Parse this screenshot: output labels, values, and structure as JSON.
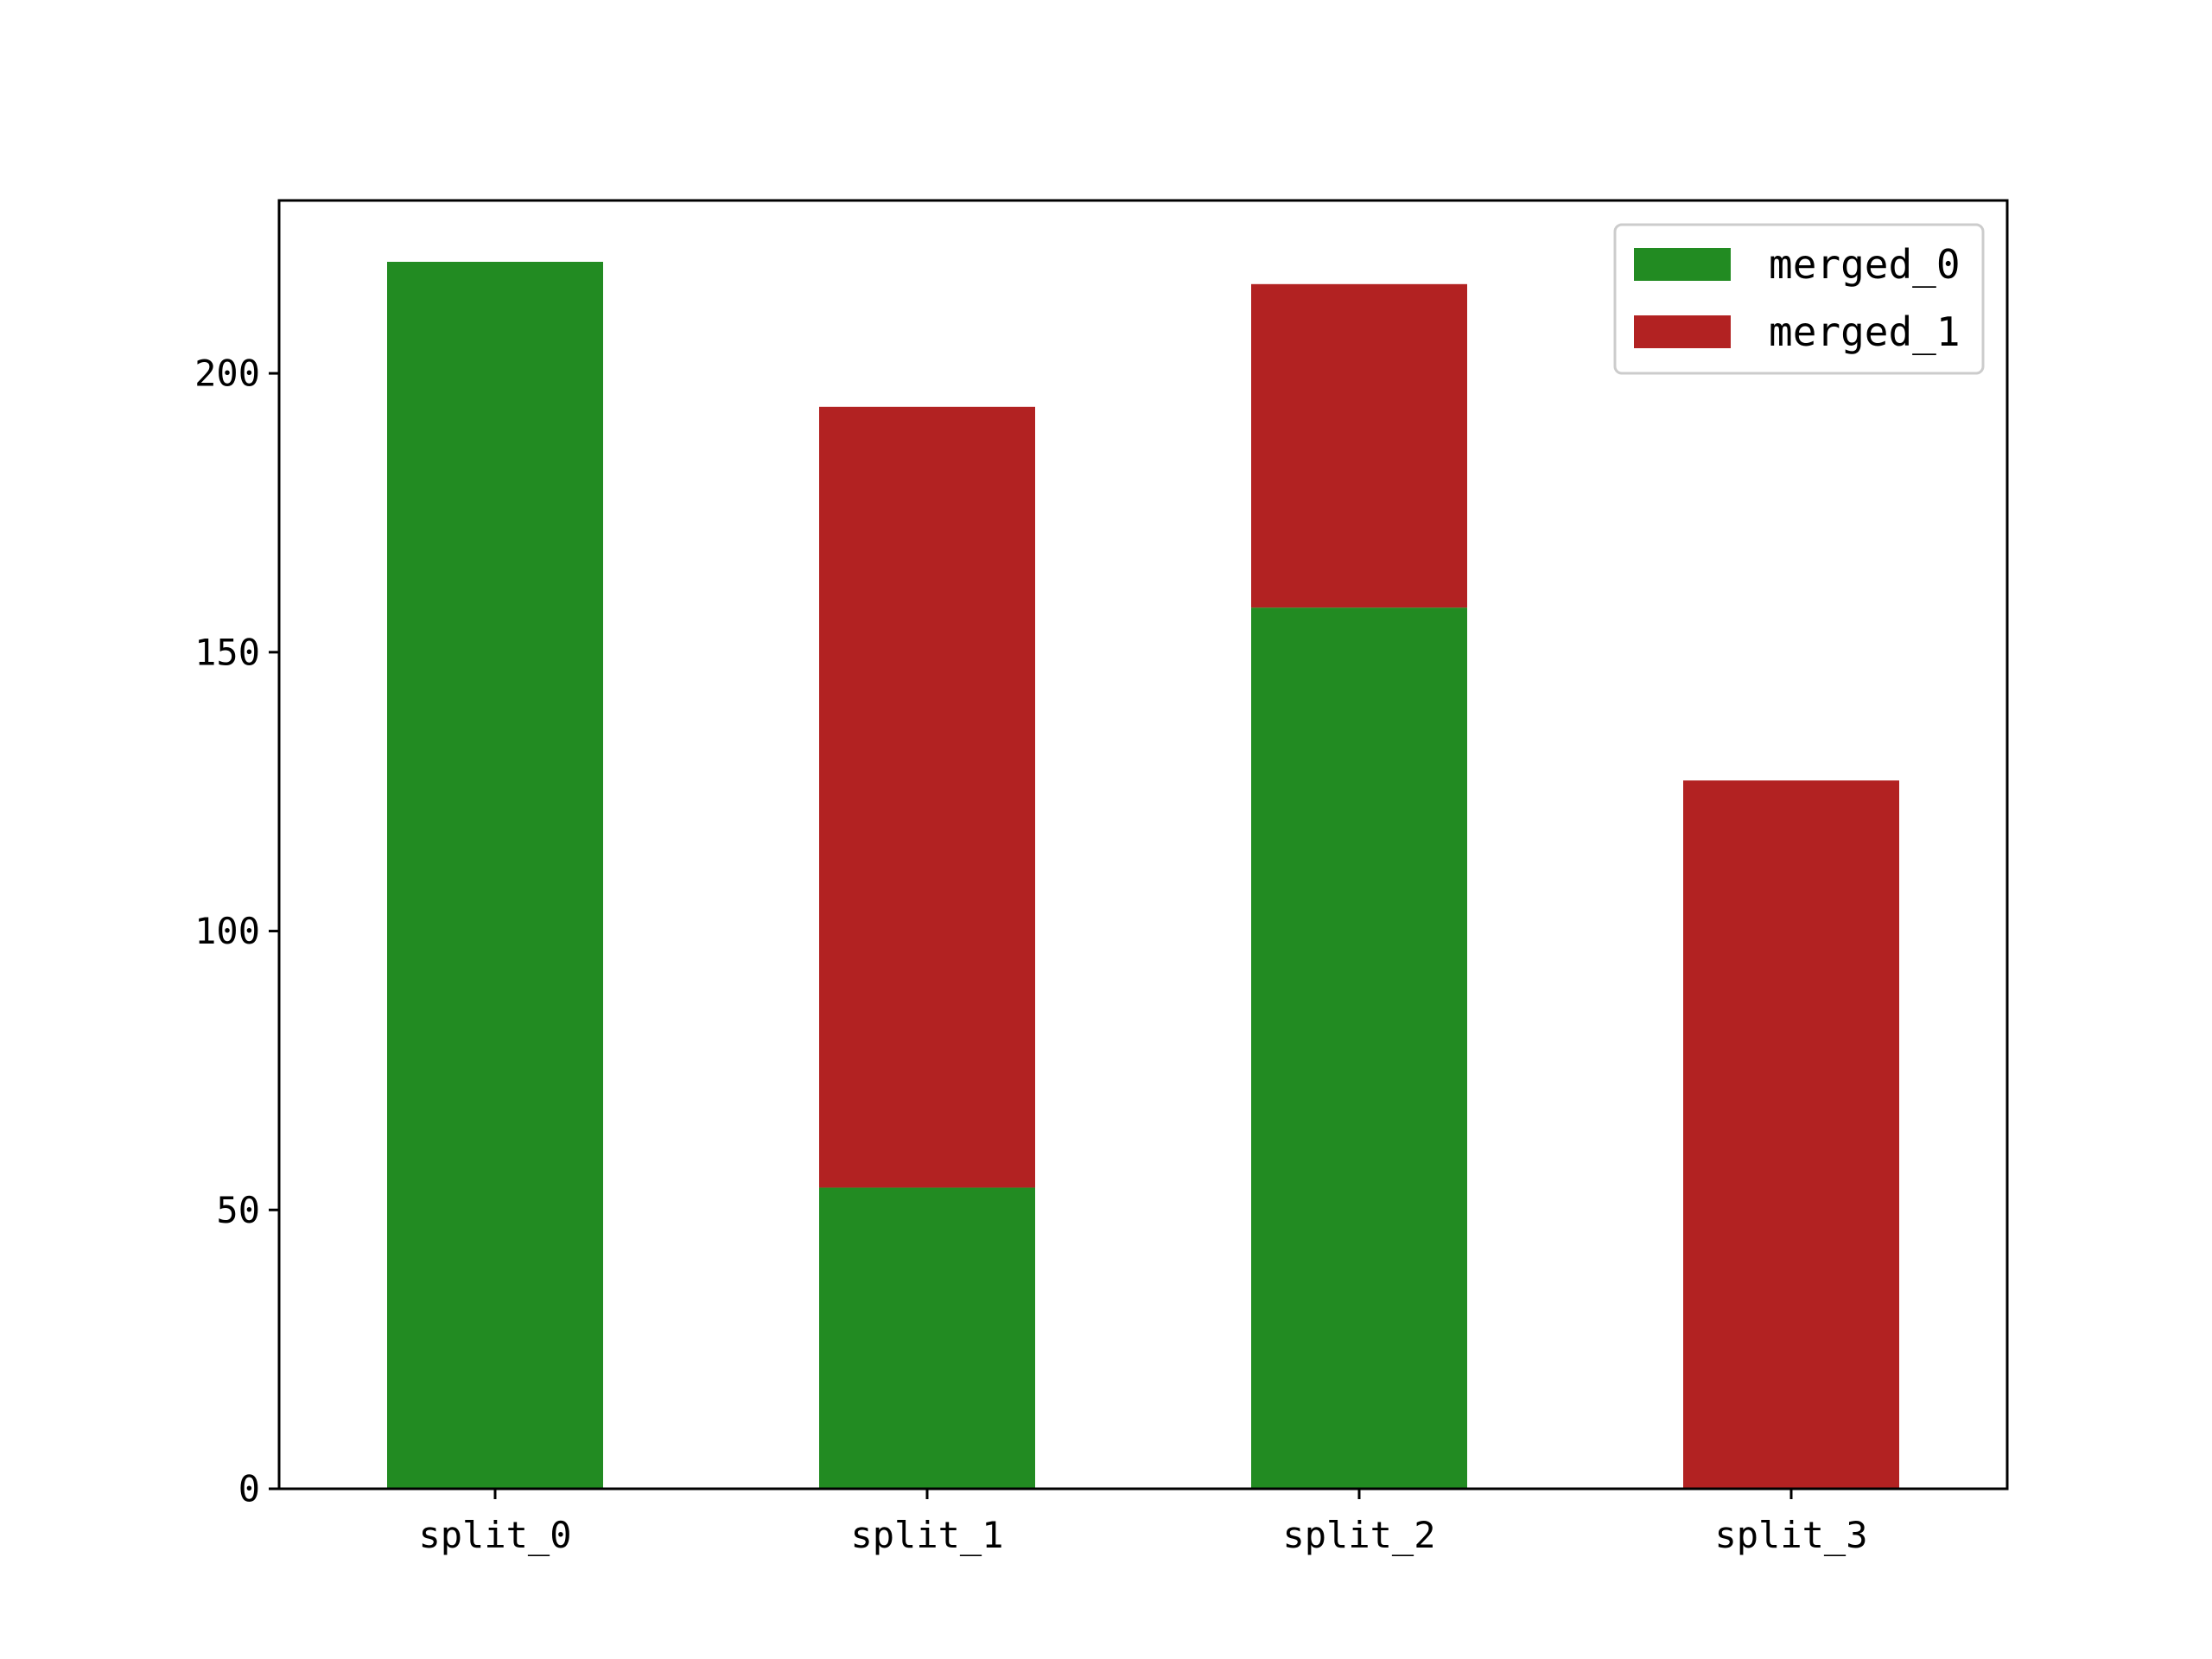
{
  "chart_data": {
    "type": "bar",
    "stacked": true,
    "categories": [
      "split_0",
      "split_1",
      "split_2",
      "split_3"
    ],
    "series": [
      {
        "name": "merged_0",
        "color": "#228b22",
        "values": [
          220,
          54,
          158,
          0
        ]
      },
      {
        "name": "merged_1",
        "color": "#b22222",
        "values": [
          0,
          140,
          58,
          127
        ]
      }
    ],
    "ylim": [
      0,
      231
    ],
    "yticks": [
      0,
      50,
      100,
      150,
      200
    ],
    "xlabel": "",
    "ylabel": "",
    "title": "",
    "grid": false,
    "legend_position": "top-right"
  }
}
